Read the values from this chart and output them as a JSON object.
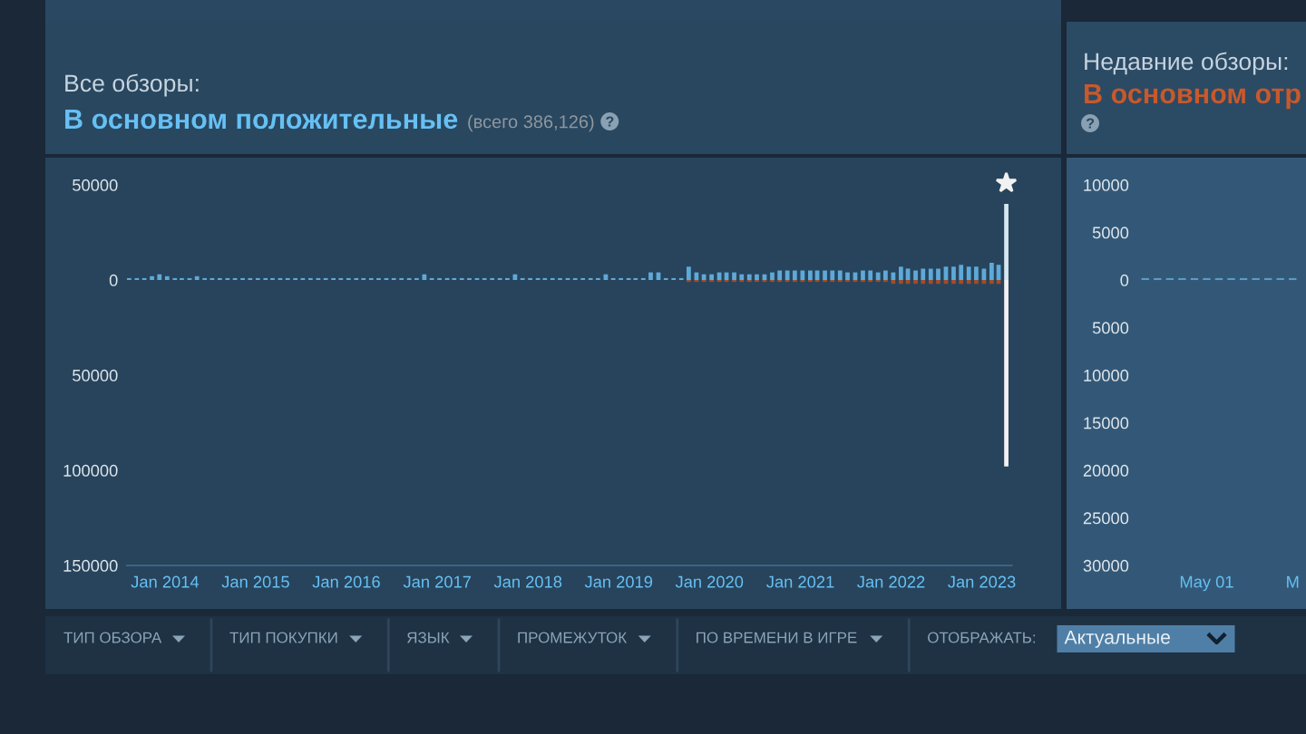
{
  "chart_data": [
    {
      "type": "bar",
      "title": "Все обзоры:",
      "subtitle": "В основном положительные",
      "annotations": [
        "(всего 386,126)"
      ],
      "x": [
        "2013-08",
        "2013-09",
        "2013-10",
        "2013-11",
        "2013-12",
        "2014-01",
        "2014-02",
        "2014-03",
        "2014-04",
        "2014-05",
        "2014-06",
        "2014-07",
        "2014-08",
        "2014-09",
        "2014-10",
        "2014-11",
        "2014-12",
        "2015-01",
        "2015-02",
        "2015-03",
        "2015-04",
        "2015-05",
        "2015-06",
        "2015-07",
        "2015-08",
        "2015-09",
        "2015-10",
        "2015-11",
        "2015-12",
        "2016-01",
        "2016-02",
        "2016-03",
        "2016-04",
        "2016-05",
        "2016-06",
        "2016-07",
        "2016-08",
        "2016-09",
        "2016-10",
        "2016-11",
        "2016-12",
        "2017-01",
        "2017-02",
        "2017-03",
        "2017-04",
        "2017-05",
        "2017-06",
        "2017-07",
        "2017-08",
        "2017-09",
        "2017-10",
        "2017-11",
        "2017-12",
        "2018-01",
        "2018-02",
        "2018-03",
        "2018-04",
        "2018-05",
        "2018-06",
        "2018-07",
        "2018-08",
        "2018-09",
        "2018-10",
        "2018-11",
        "2018-12",
        "2019-01",
        "2019-02",
        "2019-03",
        "2019-04",
        "2019-05",
        "2019-06",
        "2019-07",
        "2019-08",
        "2019-09",
        "2019-10",
        "2019-11",
        "2019-12",
        "2020-01",
        "2020-02",
        "2020-03",
        "2020-04",
        "2020-05",
        "2020-06",
        "2020-07",
        "2020-08",
        "2020-09",
        "2020-10",
        "2020-11",
        "2020-12",
        "2021-01",
        "2021-02",
        "2021-03",
        "2021-04",
        "2021-05",
        "2021-06",
        "2021-07",
        "2021-08",
        "2021-09",
        "2021-10",
        "2021-11",
        "2021-12",
        "2022-01",
        "2022-02",
        "2022-03",
        "2022-04",
        "2022-05",
        "2022-06",
        "2022-07",
        "2022-08",
        "2022-09",
        "2022-10",
        "2022-11",
        "2022-12",
        "2023-01",
        "2023-02",
        "2023-03",
        "2023-04"
      ],
      "series": [
        {
          "colors": [
            "#5fa9d8",
            "#5fa9d8",
            "#5fa9d8",
            "#5fa9d8",
            "#5fa9d8",
            "#5fa9d8",
            "#5fa9d8",
            "#5fa9d8",
            "#5fa9d8",
            "#5fa9d8",
            "#5fa9d8",
            "#5fa9d8",
            "#5fa9d8",
            "#5fa9d8",
            "#5fa9d8",
            "#5fa9d8",
            "#5fa9d8",
            "#5fa9d8",
            "#5fa9d8",
            "#5fa9d8",
            "#5fa9d8",
            "#5fa9d8",
            "#5fa9d8",
            "#5fa9d8",
            "#5fa9d8",
            "#5fa9d8",
            "#5fa9d8",
            "#5fa9d8",
            "#5fa9d8",
            "#5fa9d8",
            "#5fa9d8",
            "#5fa9d8",
            "#5fa9d8",
            "#5fa9d8",
            "#5fa9d8",
            "#5fa9d8",
            "#5fa9d8",
            "#5fa9d8",
            "#5fa9d8",
            "#5fa9d8",
            "#5fa9d8",
            "#5fa9d8",
            "#5fa9d8",
            "#5fa9d8",
            "#5fa9d8",
            "#5fa9d8",
            "#5fa9d8",
            "#5fa9d8",
            "#5fa9d8",
            "#5fa9d8",
            "#5fa9d8",
            "#5fa9d8",
            "#5fa9d8",
            "#5fa9d8",
            "#5fa9d8",
            "#5fa9d8",
            "#5fa9d8",
            "#5fa9d8",
            "#5fa9d8",
            "#5fa9d8",
            "#5fa9d8",
            "#5fa9d8",
            "#5fa9d8",
            "#5fa9d8",
            "#5fa9d8",
            "#5fa9d8",
            "#5fa9d8",
            "#5fa9d8",
            "#5fa9d8",
            "#5fa9d8",
            "#5fa9d8",
            "#5fa9d8",
            "#5fa9d8",
            "#5fa9d8",
            "#5fa9d8",
            "#5fa9d8",
            "#5fa9d8",
            "#5fa9d8",
            "#5fa9d8",
            "#5fa9d8",
            "#5fa9d8",
            "#5fa9d8",
            "#5fa9d8",
            "#5fa9d8",
            "#5fa9d8",
            "#5fa9d8",
            "#5fa9d8",
            "#5fa9d8",
            "#5fa9d8",
            "#5fa9d8",
            "#5fa9d8",
            "#5fa9d8",
            "#5fa9d8",
            "#5fa9d8",
            "#5fa9d8",
            "#5fa9d8",
            "#5fa9d8",
            "#5fa9d8",
            "#5fa9d8",
            "#5fa9d8",
            "#5fa9d8",
            "#5fa9d8",
            "#5fa9d8",
            "#5fa9d8",
            "#5fa9d8",
            "#5fa9d8",
            "#5fa9d8",
            "#5fa9d8",
            "#5fa9d8",
            "#5fa9d8",
            "#5fa9d8",
            "#5fa9d8",
            "#5fa9d8",
            "#5fa9d8",
            "#5fa9d8",
            "#5fa9d8",
            "#d5e6f1"
          ],
          "values": [
            1000,
            1000,
            1000,
            2000,
            3000,
            2000,
            1000,
            1000,
            1000,
            2000,
            1000,
            1000,
            1000,
            1000,
            1000,
            1000,
            1000,
            1000,
            1000,
            1000,
            1000,
            1000,
            1000,
            1000,
            1000,
            1000,
            1000,
            1000,
            1000,
            1000,
            1000,
            1000,
            1000,
            1000,
            1000,
            1000,
            1000,
            1000,
            1000,
            3000,
            1000,
            1000,
            1000,
            1000,
            1000,
            1000,
            1000,
            1000,
            1000,
            1000,
            1000,
            3000,
            1000,
            1000,
            1000,
            1000,
            1000,
            1000,
            1000,
            1000,
            1000,
            1000,
            1000,
            3000,
            1000,
            1000,
            1000,
            1000,
            1000,
            4000,
            4000,
            1000,
            1000,
            1000,
            7000,
            4000,
            3000,
            3000,
            4000,
            4000,
            4000,
            3000,
            3000,
            3000,
            3000,
            4000,
            5000,
            5000,
            5000,
            5000,
            5000,
            5000,
            5000,
            5000,
            5000,
            4000,
            4000,
            5000,
            5000,
            4000,
            5000,
            4000,
            7000,
            6000,
            5000,
            6000,
            6000,
            6000,
            7000,
            7000,
            8000,
            7000,
            7000,
            6000,
            9000,
            8000,
            40000
          ]
        },
        {
          "colors": [
            "#a34c25",
            "#a34c25",
            "#a34c25",
            "#a34c25",
            "#a34c25",
            "#a34c25",
            "#a34c25",
            "#a34c25",
            "#a34c25",
            "#a34c25",
            "#a34c25",
            "#a34c25",
            "#a34c25",
            "#a34c25",
            "#a34c25",
            "#a34c25",
            "#a34c25",
            "#a34c25",
            "#a34c25",
            "#a34c25",
            "#a34c25",
            "#a34c25",
            "#a34c25",
            "#a34c25",
            "#a34c25",
            "#a34c25",
            "#a34c25",
            "#a34c25",
            "#a34c25",
            "#a34c25",
            "#a34c25",
            "#a34c25",
            "#a34c25",
            "#a34c25",
            "#a34c25",
            "#a34c25",
            "#a34c25",
            "#a34c25",
            "#a34c25",
            "#a34c25",
            "#a34c25",
            "#a34c25",
            "#a34c25",
            "#a34c25",
            "#a34c25",
            "#a34c25",
            "#a34c25",
            "#a34c25",
            "#a34c25",
            "#a34c25",
            "#a34c25",
            "#a34c25",
            "#a34c25",
            "#a34c25",
            "#a34c25",
            "#a34c25",
            "#a34c25",
            "#a34c25",
            "#a34c25",
            "#a34c25",
            "#a34c25",
            "#a34c25",
            "#a34c25",
            "#a34c25",
            "#a34c25",
            "#a34c25",
            "#a34c25",
            "#a34c25",
            "#a34c25",
            "#a34c25",
            "#a34c25",
            "#a34c25",
            "#a34c25",
            "#a34c25",
            "#a34c25",
            "#a34c25",
            "#a34c25",
            "#a34c25",
            "#a34c25",
            "#a34c25",
            "#a34c25",
            "#a34c25",
            "#a34c25",
            "#a34c25",
            "#a34c25",
            "#a34c25",
            "#a34c25",
            "#a34c25",
            "#a34c25",
            "#a34c25",
            "#a34c25",
            "#a34c25",
            "#a34c25",
            "#a34c25",
            "#a34c25",
            "#a34c25",
            "#a34c25",
            "#a34c25",
            "#a34c25",
            "#a34c25",
            "#a34c25",
            "#a34c25",
            "#a34c25",
            "#a34c25",
            "#a34c25",
            "#a34c25",
            "#a34c25",
            "#a34c25",
            "#a34c25",
            "#a34c25",
            "#a34c25",
            "#a34c25",
            "#a34c25",
            "#a34c25",
            "#a34c25",
            "#a34c25",
            "#f2f2f2"
          ],
          "values": [
            null,
            null,
            null,
            null,
            null,
            null,
            null,
            null,
            null,
            null,
            null,
            null,
            null,
            null,
            null,
            null,
            null,
            null,
            null,
            null,
            null,
            null,
            null,
            null,
            null,
            null,
            null,
            null,
            null,
            null,
            null,
            null,
            null,
            null,
            null,
            null,
            null,
            null,
            null,
            null,
            null,
            null,
            null,
            null,
            null,
            null,
            null,
            null,
            null,
            null,
            null,
            null,
            null,
            null,
            null,
            null,
            null,
            null,
            null,
            null,
            null,
            null,
            null,
            null,
            null,
            null,
            null,
            null,
            null,
            null,
            null,
            null,
            null,
            null,
            -1000,
            -1000,
            -1000,
            -1000,
            -1000,
            -1000,
            -1000,
            -1000,
            -1000,
            -1000,
            -1000,
            -1000,
            -1000,
            -1000,
            -1000,
            -1000,
            -1000,
            -1000,
            -1000,
            -1000,
            -1000,
            -1000,
            -1000,
            -1000,
            -1000,
            -1000,
            -1000,
            -2000,
            -2000,
            -2000,
            -2000,
            -2000,
            -2000,
            -2000,
            -2000,
            -2000,
            -2000,
            -2000,
            -2000,
            -2000,
            -2000,
            -2000,
            -98000
          ]
        }
      ],
      "xlim": [
        "2013-08",
        "2023-05"
      ],
      "ylim": [
        -150000,
        50000
      ],
      "xticks": [
        {
          "value": "2014-01",
          "label": "Jan 2014"
        },
        {
          "value": "2015-01",
          "label": "Jan 2015"
        },
        {
          "value": "2016-01",
          "label": "Jan 2016"
        },
        {
          "value": "2017-01",
          "label": "Jan 2017"
        },
        {
          "value": "2018-01",
          "label": "Jan 2018"
        },
        {
          "value": "2019-01",
          "label": "Jan 2019"
        },
        {
          "value": "2020-01",
          "label": "Jan 2020"
        },
        {
          "value": "2021-01",
          "label": "Jan 2021"
        },
        {
          "value": "2022-01",
          "label": "Jan 2022"
        },
        {
          "value": "2023-01",
          "label": "Jan 2023"
        }
      ],
      "yticks": [
        50000,
        0,
        {
          "value": -50000,
          "label": "50000"
        },
        {
          "value": -100000,
          "label": "100000"
        },
        {
          "value": -150000,
          "label": "150000"
        }
      ]
    },
    {
      "type": "bar",
      "title": "Недавние обзоры:",
      "subtitle": "В основном отр",
      "categories": [
        null,
        null,
        null,
        null,
        null,
        "May 01",
        null,
        null,
        null,
        null,
        null,
        null,
        "M"
      ],
      "values": [
        200,
        200,
        200,
        200,
        200,
        200,
        200,
        200,
        200,
        200,
        200,
        200,
        200
      ],
      "color": "#5a9cc6",
      "ylim": [
        -30000,
        10000
      ],
      "yticks": [
        10000,
        5000,
        0,
        {
          "value": -5000,
          "label": "5000"
        },
        {
          "value": -10000,
          "label": "10000"
        },
        {
          "value": -15000,
          "label": "15000"
        },
        {
          "value": -20000,
          "label": "20000"
        },
        {
          "value": -25000,
          "label": "25000"
        },
        {
          "value": -30000,
          "label": "30000"
        }
      ]
    },
    {
      "type": "other",
      "annotations": [
        "ТИП ОБЗОРА",
        "ТИП ПОКУПКИ",
        "ЯЗЫК",
        "ПРОМЕЖУТОК",
        "ПО ВРЕМЕНИ В ИГРЕ",
        "ОТОБРАЖАТЬ:",
        "Актуальные"
      ]
    }
  ]
}
